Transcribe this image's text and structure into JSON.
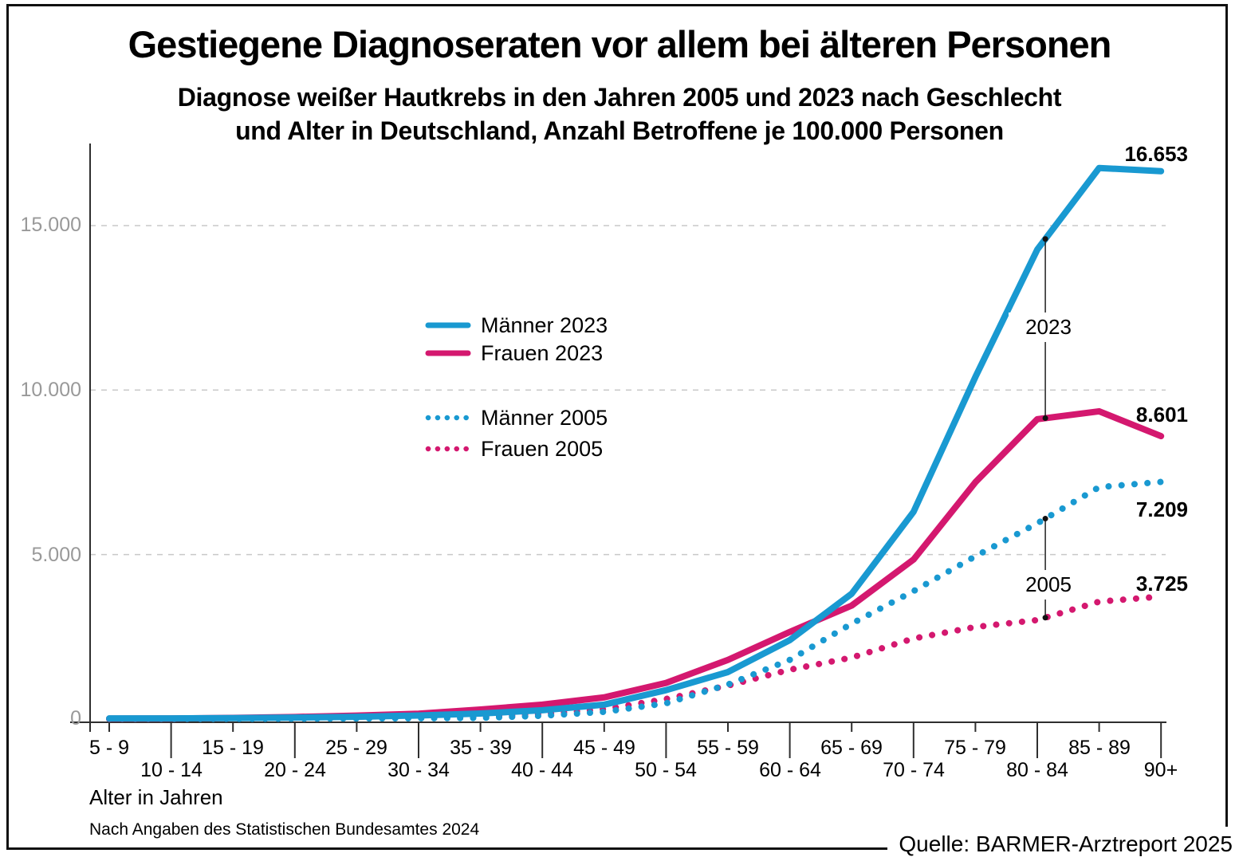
{
  "footer": {
    "data_note": "Nach Angaben des Statistischen Bundesamtes 2024",
    "source": "Quelle: BARMER-Arztreport 2025"
  },
  "chart_data": {
    "type": "line",
    "title": "Gestiegene Diagnoseraten vor allem bei älteren Personen",
    "subtitle_line1": "Diagnose weißer Hautkrebs in den Jahren 2005 und 2023 nach Geschlecht",
    "subtitle_line2": "und Alter in Deutschland, Anzahl Betroffene je 100.000 Personen",
    "xlabel": "Alter in Jahren",
    "ylabel": "Anzahl Betroffene je 100.000 Personen",
    "ylim": [
      0,
      17500
    ],
    "grid": "horizontal-dashed",
    "legend_position": "inside-center-left",
    "y_ticks": [
      {
        "value": 0,
        "label": "0"
      },
      {
        "value": 5000,
        "label": "5.000"
      },
      {
        "value": 10000,
        "label": "10.000"
      },
      {
        "value": 15000,
        "label": "15.000"
      }
    ],
    "categories": [
      "5 - 9",
      "10 - 14",
      "15 - 19",
      "20 - 24",
      "25 - 29",
      "30 - 34",
      "35 - 39",
      "40 - 44",
      "45 - 49",
      "50 - 54",
      "55 - 59",
      "60 - 64",
      "65 - 69",
      "70 - 74",
      "75 - 79",
      "80 - 84",
      "85 - 89",
      "90+"
    ],
    "series": [
      {
        "name": "Männer 2023",
        "color": "#1999D1",
        "line_style": "solid",
        "values": [
          20,
          22,
          30,
          45,
          70,
          110,
          170,
          270,
          440,
          880,
          1430,
          2400,
          3810,
          6300,
          10400,
          14270,
          16750,
          16653
        ]
      },
      {
        "name": "Frauen 2023",
        "color": "#D4186F",
        "line_style": "solid",
        "values": [
          15,
          18,
          35,
          65,
          105,
          165,
          290,
          440,
          660,
          1100,
          1800,
          2650,
          3450,
          4850,
          7200,
          9115,
          9355,
          8601
        ]
      },
      {
        "name": "Männer 2005",
        "color": "#1999D1",
        "line_style": "dotted",
        "values": [
          5,
          6,
          8,
          12,
          18,
          25,
          35,
          100,
          220,
          480,
          1050,
          1800,
          2900,
          3890,
          4950,
          5950,
          7050,
          7209
        ]
      },
      {
        "name": "Frauen 2005",
        "color": "#D4186F",
        "line_style": "dotted",
        "values": [
          6,
          8,
          12,
          18,
          28,
          45,
          75,
          150,
          300,
          610,
          1020,
          1500,
          1870,
          2450,
          2800,
          3010,
          3570,
          3725
        ]
      }
    ],
    "value_labels": [
      {
        "text": "16.653",
        "series": "Männer 2023",
        "at": "90+"
      },
      {
        "text": "8.601",
        "series": "Frauen 2023",
        "at": "90+"
      },
      {
        "text": "7.209",
        "series": "Männer 2005",
        "at": "90+"
      },
      {
        "text": "3.725",
        "series": "Frauen 2005",
        "at": "90+"
      }
    ],
    "gap_markers": [
      {
        "label": "2023",
        "between": [
          "Männer 2023",
          "Frauen 2023"
        ],
        "at": "80 - 84"
      },
      {
        "label": "2005",
        "between": [
          "Männer 2005",
          "Frauen 2005"
        ],
        "at": "80 - 84"
      }
    ]
  }
}
